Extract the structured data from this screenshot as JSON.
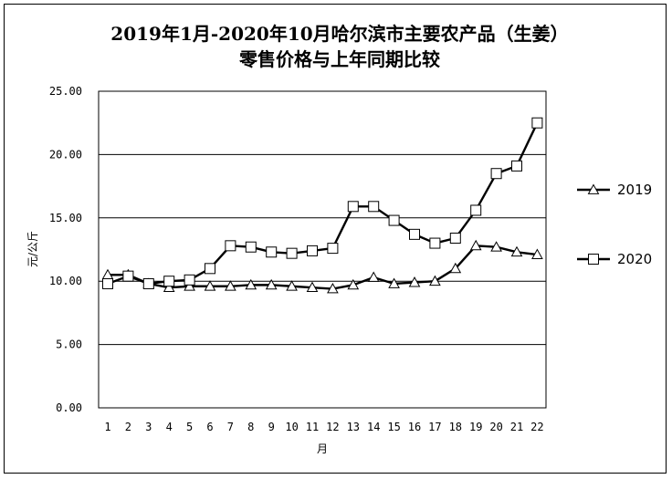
{
  "chart_data": {
    "type": "line",
    "title": "2019年1月-2020年10月哈尔滨市主要农产品（生姜）",
    "subtitle": "零售价格与上年同期比较",
    "xlabel": "月",
    "ylabel": "元/公斤",
    "ylim": [
      0,
      25
    ],
    "yticks": [
      "0.00",
      "5.00",
      "10.00",
      "15.00",
      "20.00",
      "25.00"
    ],
    "categories": [
      "1",
      "2",
      "3",
      "4",
      "5",
      "6",
      "7",
      "8",
      "9",
      "10",
      "11",
      "12",
      "13",
      "14",
      "15",
      "16",
      "17",
      "18",
      "19",
      "20",
      "21",
      "22"
    ],
    "grid": true,
    "legend_position": "right",
    "series": [
      {
        "name": "2019",
        "marker": "triangle",
        "values": [
          10.5,
          10.5,
          9.8,
          9.5,
          9.6,
          9.6,
          9.6,
          9.7,
          9.7,
          9.6,
          9.5,
          9.4,
          9.7,
          10.3,
          9.8,
          9.9,
          10.0,
          11.0,
          12.8,
          12.7,
          12.3,
          12.1
        ]
      },
      {
        "name": "2020",
        "marker": "square",
        "values": [
          9.8,
          10.4,
          9.8,
          10.0,
          10.1,
          11.0,
          12.8,
          12.7,
          12.3,
          12.2,
          12.4,
          12.6,
          15.9,
          15.9,
          14.8,
          13.7,
          13.0,
          13.4,
          15.6,
          18.5,
          19.1,
          22.5
        ]
      }
    ]
  }
}
